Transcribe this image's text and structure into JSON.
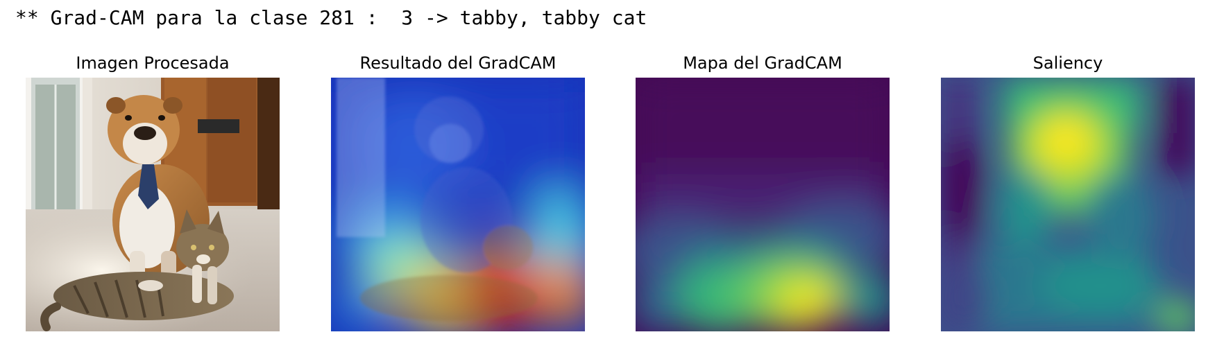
{
  "header": {
    "text": "** Grad-CAM para la clase 281 :  3 -> tabby, tabby cat"
  },
  "panels": [
    {
      "title": "Imagen Procesada"
    },
    {
      "title": "Resultado del GradCAM"
    },
    {
      "title": "Mapa del GradCAM"
    },
    {
      "title": "Saliency"
    }
  ],
  "colors": {
    "viridis_dark": "#440154",
    "viridis_blue": "#3b528b",
    "viridis_teal": "#21918c",
    "viridis_green": "#5ec962",
    "viridis_yellow": "#fde725",
    "jet_blue": "#1030c8",
    "jet_red": "#d42018"
  }
}
